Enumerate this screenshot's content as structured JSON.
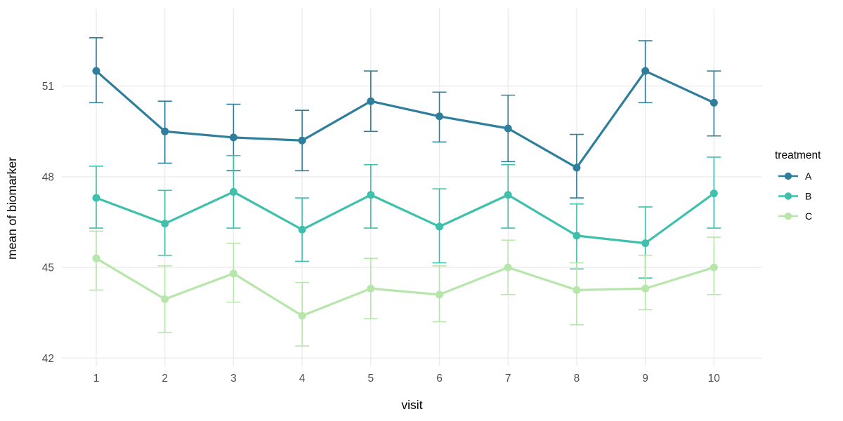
{
  "chart_data": {
    "type": "line",
    "title": "",
    "xlabel": "visit",
    "ylabel": "mean of biomarker",
    "x": [
      1,
      2,
      3,
      4,
      5,
      6,
      7,
      8,
      9,
      10
    ],
    "x_tick_labels": [
      "1",
      "2",
      "3",
      "4",
      "5",
      "6",
      "7",
      "8",
      "9",
      "10"
    ],
    "y_ticks": [
      42,
      45,
      48,
      51
    ],
    "y_tick_labels": [
      "42",
      "45",
      "48",
      "51"
    ],
    "ylim": [
      41.7,
      53.6
    ],
    "grid": "major-only, light gray, horizontal at y ticks and vertical at each visit",
    "legend": {
      "title": "treatment",
      "position": "right",
      "entries": [
        "A",
        "B",
        "C"
      ]
    },
    "series": [
      {
        "name": "A",
        "color": "#2e7e9c",
        "values": [
          51.5,
          49.5,
          49.3,
          49.2,
          50.5,
          50.0,
          49.6,
          48.3,
          51.5,
          50.45
        ],
        "err_lo": [
          50.45,
          48.45,
          48.2,
          48.2,
          49.5,
          49.15,
          48.5,
          47.3,
          50.45,
          49.35
        ],
        "err_hi": [
          52.6,
          50.5,
          50.4,
          50.2,
          51.5,
          50.8,
          50.7,
          49.4,
          52.5,
          51.5
        ]
      },
      {
        "name": "B",
        "color": "#3fc0ac",
        "values": [
          47.3,
          46.45,
          47.5,
          46.25,
          47.4,
          46.35,
          47.4,
          46.05,
          45.8,
          47.45
        ],
        "err_lo": [
          46.3,
          45.4,
          46.3,
          45.2,
          46.3,
          45.15,
          46.3,
          44.95,
          44.65,
          46.3
        ],
        "err_hi": [
          48.35,
          47.55,
          48.7,
          47.3,
          48.4,
          47.6,
          48.4,
          47.1,
          47.0,
          48.65
        ]
      },
      {
        "name": "C",
        "color": "#b7e6ab",
        "values": [
          45.3,
          43.95,
          44.8,
          43.4,
          44.3,
          44.1,
          45.0,
          44.25,
          44.3,
          45.0
        ],
        "err_lo": [
          44.25,
          42.85,
          43.85,
          42.4,
          43.3,
          43.2,
          44.1,
          43.1,
          43.6,
          44.1
        ],
        "err_hi": [
          46.2,
          45.05,
          45.8,
          44.5,
          45.3,
          45.05,
          45.9,
          45.15,
          45.4,
          46.0
        ]
      }
    ],
    "style": {
      "grid_color": "#ebebeb",
      "tick_label_color": "#4d4d4d",
      "axis_title_color": "#000000",
      "background": "#ffffff"
    }
  }
}
